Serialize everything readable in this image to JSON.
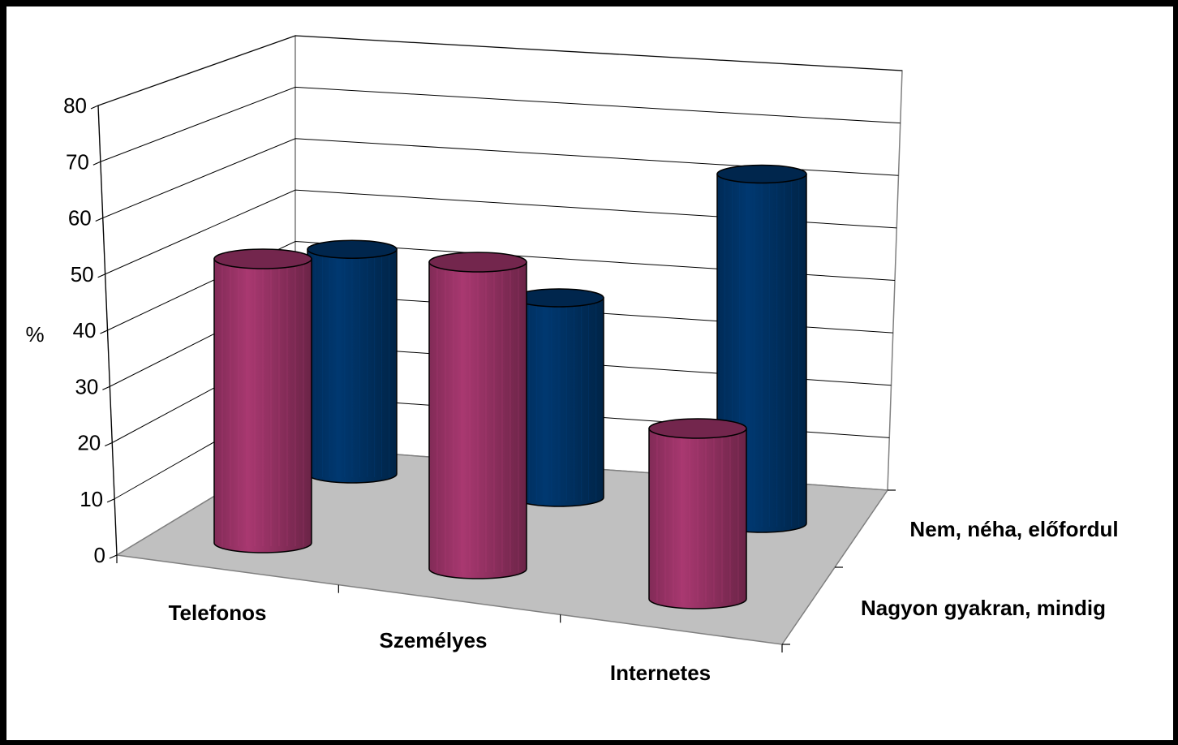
{
  "chart_data": {
    "type": "bar",
    "bar_shape": "cylinder",
    "projection": "3d",
    "categories": [
      "Telefonos",
      "Személyes",
      "Internetes"
    ],
    "series": [
      {
        "name_parts": [
          "Nagyon gyakran, mindig"
        ],
        "name": "Nagyon gyakran, mindig",
        "values": [
          50,
          54,
          30
        ],
        "color": "#993366"
      },
      {
        "name_parts": [
          "Nem, néha, ",
          "előfordul"
        ],
        "name": "Nem, néha, előfordul",
        "values": [
          45,
          40,
          70
        ],
        "color": "#003366"
      }
    ],
    "ylabel": "%",
    "ylim": [
      0,
      80
    ],
    "y_ticks": [
      "0",
      "10",
      "20",
      "30",
      "40",
      "50",
      "60",
      "70",
      "80"
    ],
    "grid": true,
    "floor_color": "#c0c0c0"
  }
}
